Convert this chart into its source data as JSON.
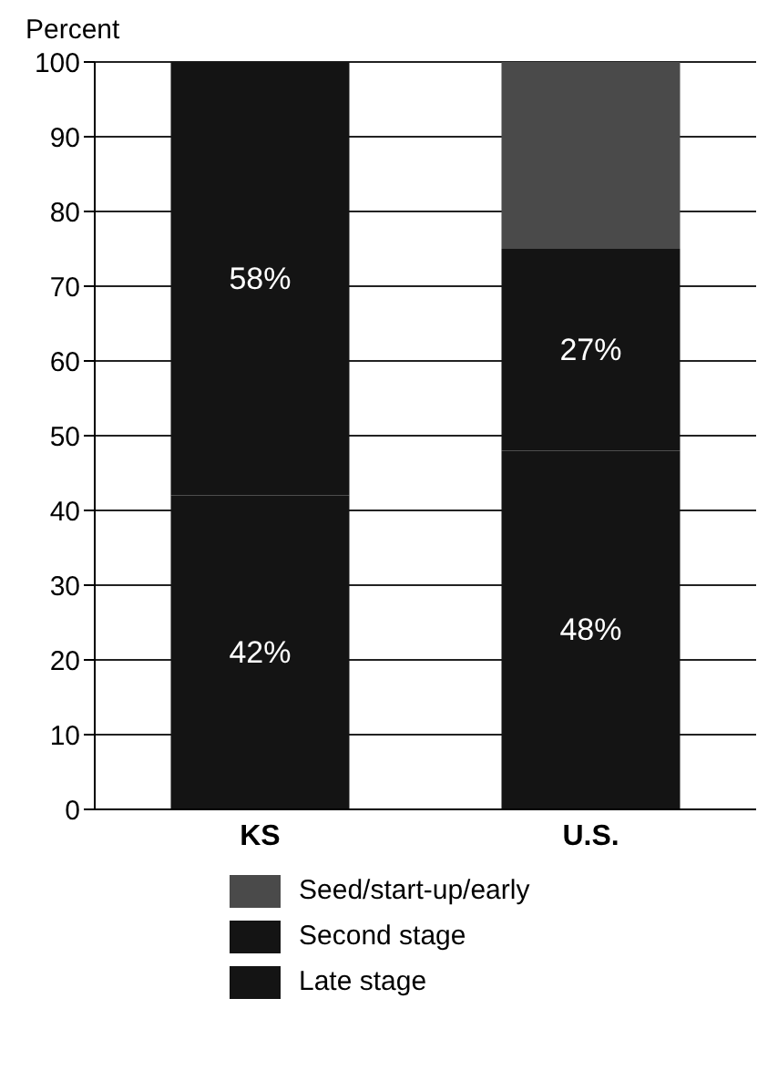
{
  "chart_data": {
    "type": "bar",
    "ylabel": "Percent",
    "categories": [
      "KS",
      "U.S."
    ],
    "stacked": true,
    "series": [
      {
        "name": "Late stage",
        "color": "#141414",
        "values": [
          42,
          48
        ],
        "value_labels": [
          "42%",
          "48%"
        ]
      },
      {
        "name": "Second stage",
        "color": "#141414",
        "values": [
          58,
          27
        ],
        "value_labels": [
          "58%",
          "27%"
        ]
      },
      {
        "name": "Seed/start-up/early",
        "color": "#4a4a4a",
        "values": [
          0,
          25
        ],
        "value_labels": [
          null,
          null
        ]
      }
    ],
    "ylim": [
      0,
      100
    ],
    "yticks": [
      0,
      10,
      20,
      30,
      40,
      50,
      60,
      70,
      80,
      90,
      100
    ],
    "grid": "y",
    "legend": "bottom"
  }
}
